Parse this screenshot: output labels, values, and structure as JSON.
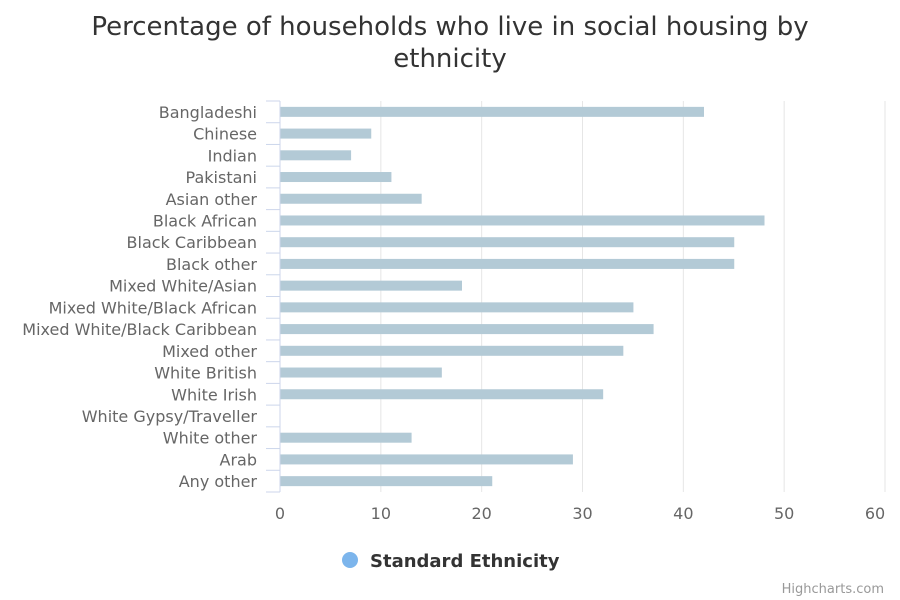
{
  "chart_data": {
    "type": "bar",
    "orientation": "horizontal",
    "title": "Percentage of households who live in social housing by ethnicity",
    "title_lines": [
      "Percentage of households who live in social housing by",
      "ethnicity"
    ],
    "categories": [
      "Bangladeshi",
      "Chinese",
      "Indian",
      "Pakistani",
      "Asian other",
      "Black African",
      "Black Caribbean",
      "Black other",
      "Mixed White/Asian",
      "Mixed White/Black African",
      "Mixed White/Black Caribbean",
      "Mixed other",
      "White British",
      "White Irish",
      "White Gypsy/Traveller",
      "White other",
      "Arab",
      "Any other"
    ],
    "series": [
      {
        "name": "Standard Ethnicity",
        "values": [
          42,
          9,
          7,
          11,
          14,
          48,
          45,
          45,
          18,
          35,
          37,
          34,
          16,
          32,
          null,
          13,
          29,
          21
        ]
      }
    ],
    "xlim": [
      0,
      60
    ],
    "xticks": [
      "0",
      "10",
      "20",
      "30",
      "40",
      "50",
      "60"
    ],
    "grid": true,
    "legend_position": "bottom-center",
    "colors": {
      "bar": "#b3cad6",
      "legend_marker": "#7cb5ec",
      "grid": "#e6e6e6",
      "axis": "#ccd6eb"
    }
  },
  "credits": "Highcharts.com"
}
